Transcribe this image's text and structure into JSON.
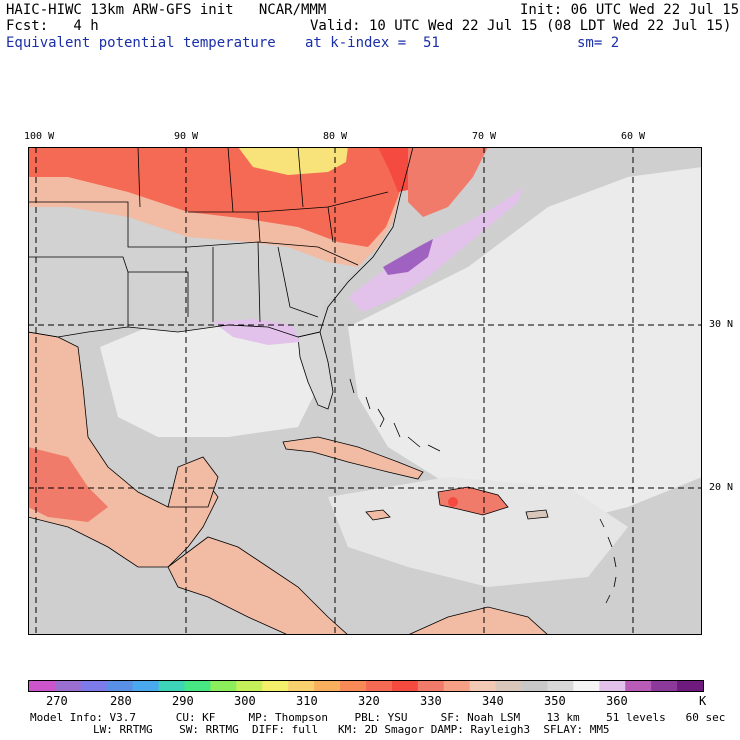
{
  "header": {
    "title": "HAIC-HIWC 13km ARW-GFS init   NCAR/MMM",
    "init": "Init: 06 UTC Wed 22 Jul 15",
    "fcst": "Fcst:   4 h",
    "valid": "Valid: 10 UTC Wed 22 Jul 15 (08 LDT Wed 22 Jul 15)",
    "field": "Equivalent potential temperature",
    "level": "at k-index =  51",
    "smooth": "sm= 2"
  },
  "map": {
    "lon_labels": [
      "100 W",
      "90 W",
      "80 W",
      "70 W",
      "60 W"
    ],
    "lat_labels": [
      "30 N",
      "20 N"
    ],
    "colors": {
      "land_cool": "#d2d2d2",
      "land_warm": "#f2bba3",
      "hot": "#f56a55",
      "hotter": "#f54a40",
      "peak": "#f8e27a",
      "ocean": "#cfcfcf",
      "ocean_light": "#ebebeb",
      "lilac": "#e2c2ea",
      "purple": "#a062c0"
    }
  },
  "colorbar": {
    "colors": [
      "#cc55cc",
      "#9a6fd0",
      "#7d7bea",
      "#5a8fe6",
      "#4aa8ee",
      "#3dd4b8",
      "#47e884",
      "#8cee5a",
      "#c6f05a",
      "#f4f06c",
      "#f8d06e",
      "#f8b05e",
      "#f88a58",
      "#f56a55",
      "#f54a40",
      "#f07b6a",
      "#f6a086",
      "#f2c9b4",
      "#d9c7bb",
      "#c8c8c8",
      "#d8d8d8",
      "#f4f4f4",
      "#e2c2ea",
      "#b85cb8",
      "#8c3a9a",
      "#6e1a7e"
    ],
    "ticks": [
      "270",
      "280",
      "290",
      "300",
      "310",
      "320",
      "330",
      "340",
      "350",
      "360"
    ],
    "unit": "K"
  },
  "footer": {
    "line1": "Model Info: V3.7      CU: KF     MP: Thompson    PBL: YSU     SF: Noah LSM    13 km    51 levels   60 sec",
    "line2": "LW: RRTMG    SW: RRTMG  DIFF: full   KM: 2D Smagor DAMP: Rayleigh3  SFLAY: MM5"
  }
}
